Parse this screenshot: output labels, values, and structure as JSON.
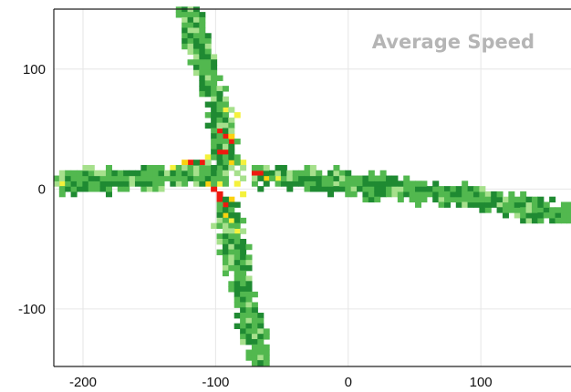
{
  "chart_data": {
    "type": "heatmap",
    "title": "Average Speed",
    "xlabel": "",
    "ylabel": "",
    "xlim": [
      -222,
      168
    ],
    "ylim": [
      -148,
      150
    ],
    "x_ticks": [
      -200,
      -100,
      0,
      100
    ],
    "y_ticks": [
      100,
      0,
      -100
    ],
    "x_tick_labels": [
      "-200",
      "-100",
      "0",
      "100"
    ],
    "y_tick_labels": [
      "100",
      "0",
      "-100"
    ],
    "grid": true,
    "colors": {
      "slow": "#ee1a0f",
      "medium_slow": "#fbd10f",
      "medium": "#f4f13c",
      "medium_fast": "#a6e08c",
      "fast": "#52b84f",
      "very_fast": "#1f8a32"
    },
    "arms": [
      {
        "name": "north",
        "points": [
          [
            -120,
            150
          ],
          [
            -100,
            80
          ],
          [
            -89,
            20
          ]
        ]
      },
      {
        "name": "south",
        "points": [
          [
            -92,
            -10
          ],
          [
            -80,
            -80
          ],
          [
            -64,
            -148
          ]
        ]
      },
      {
        "name": "west",
        "points": [
          [
            -218,
            5
          ],
          [
            -150,
            10
          ],
          [
            -95,
            15
          ]
        ]
      },
      {
        "name": "east",
        "points": [
          [
            -70,
            12
          ],
          [
            0,
            5
          ],
          [
            100,
            -8
          ],
          [
            168,
            -22
          ]
        ]
      }
    ],
    "hotspots": [
      {
        "x": -93,
        "y": 42,
        "level": "slow"
      },
      {
        "x": -89,
        "y": 40,
        "level": "slow"
      },
      {
        "x": -95,
        "y": 48,
        "level": "slow"
      },
      {
        "x": -90,
        "y": 46,
        "level": "medium_slow"
      },
      {
        "x": -98,
        "y": 30,
        "level": "slow"
      },
      {
        "x": -93,
        "y": 30,
        "level": "slow"
      },
      {
        "x": -110,
        "y": 20,
        "level": "slow"
      },
      {
        "x": -118,
        "y": 20,
        "level": "slow"
      },
      {
        "x": -124,
        "y": 20,
        "level": "medium_slow"
      },
      {
        "x": -130,
        "y": 18,
        "level": "medium"
      },
      {
        "x": -72,
        "y": 12,
        "level": "slow"
      },
      {
        "x": -66,
        "y": 12,
        "level": "slow"
      },
      {
        "x": -60,
        "y": 10,
        "level": "medium_slow"
      },
      {
        "x": -54,
        "y": 8,
        "level": "medium"
      },
      {
        "x": -101,
        "y": 0,
        "level": "slow"
      },
      {
        "x": -98,
        "y": -4,
        "level": "slow"
      },
      {
        "x": -96,
        "y": -10,
        "level": "slow"
      },
      {
        "x": -93,
        "y": -14,
        "level": "slow"
      },
      {
        "x": -91,
        "y": -20,
        "level": "medium_slow"
      },
      {
        "x": -90,
        "y": -28,
        "level": "medium"
      },
      {
        "x": -104,
        "y": 4,
        "level": "medium_slow"
      },
      {
        "x": -86,
        "y": 22,
        "level": "medium_slow"
      },
      {
        "x": -80,
        "y": 22,
        "level": "medium"
      },
      {
        "x": -107,
        "y": 26,
        "level": "medium"
      },
      {
        "x": -85,
        "y": 6,
        "level": "medium"
      },
      {
        "x": -95,
        "y": 6,
        "level": "medium"
      },
      {
        "x": -78,
        "y": -4,
        "level": "medium"
      },
      {
        "x": -86,
        "y": -8,
        "level": "medium_slow"
      },
      {
        "x": -216,
        "y": 4,
        "level": "medium"
      },
      {
        "x": -84,
        "y": 60,
        "level": "medium"
      },
      {
        "x": -92,
        "y": 66,
        "level": "medium"
      },
      {
        "x": -82,
        "y": -36,
        "level": "medium"
      }
    ]
  }
}
